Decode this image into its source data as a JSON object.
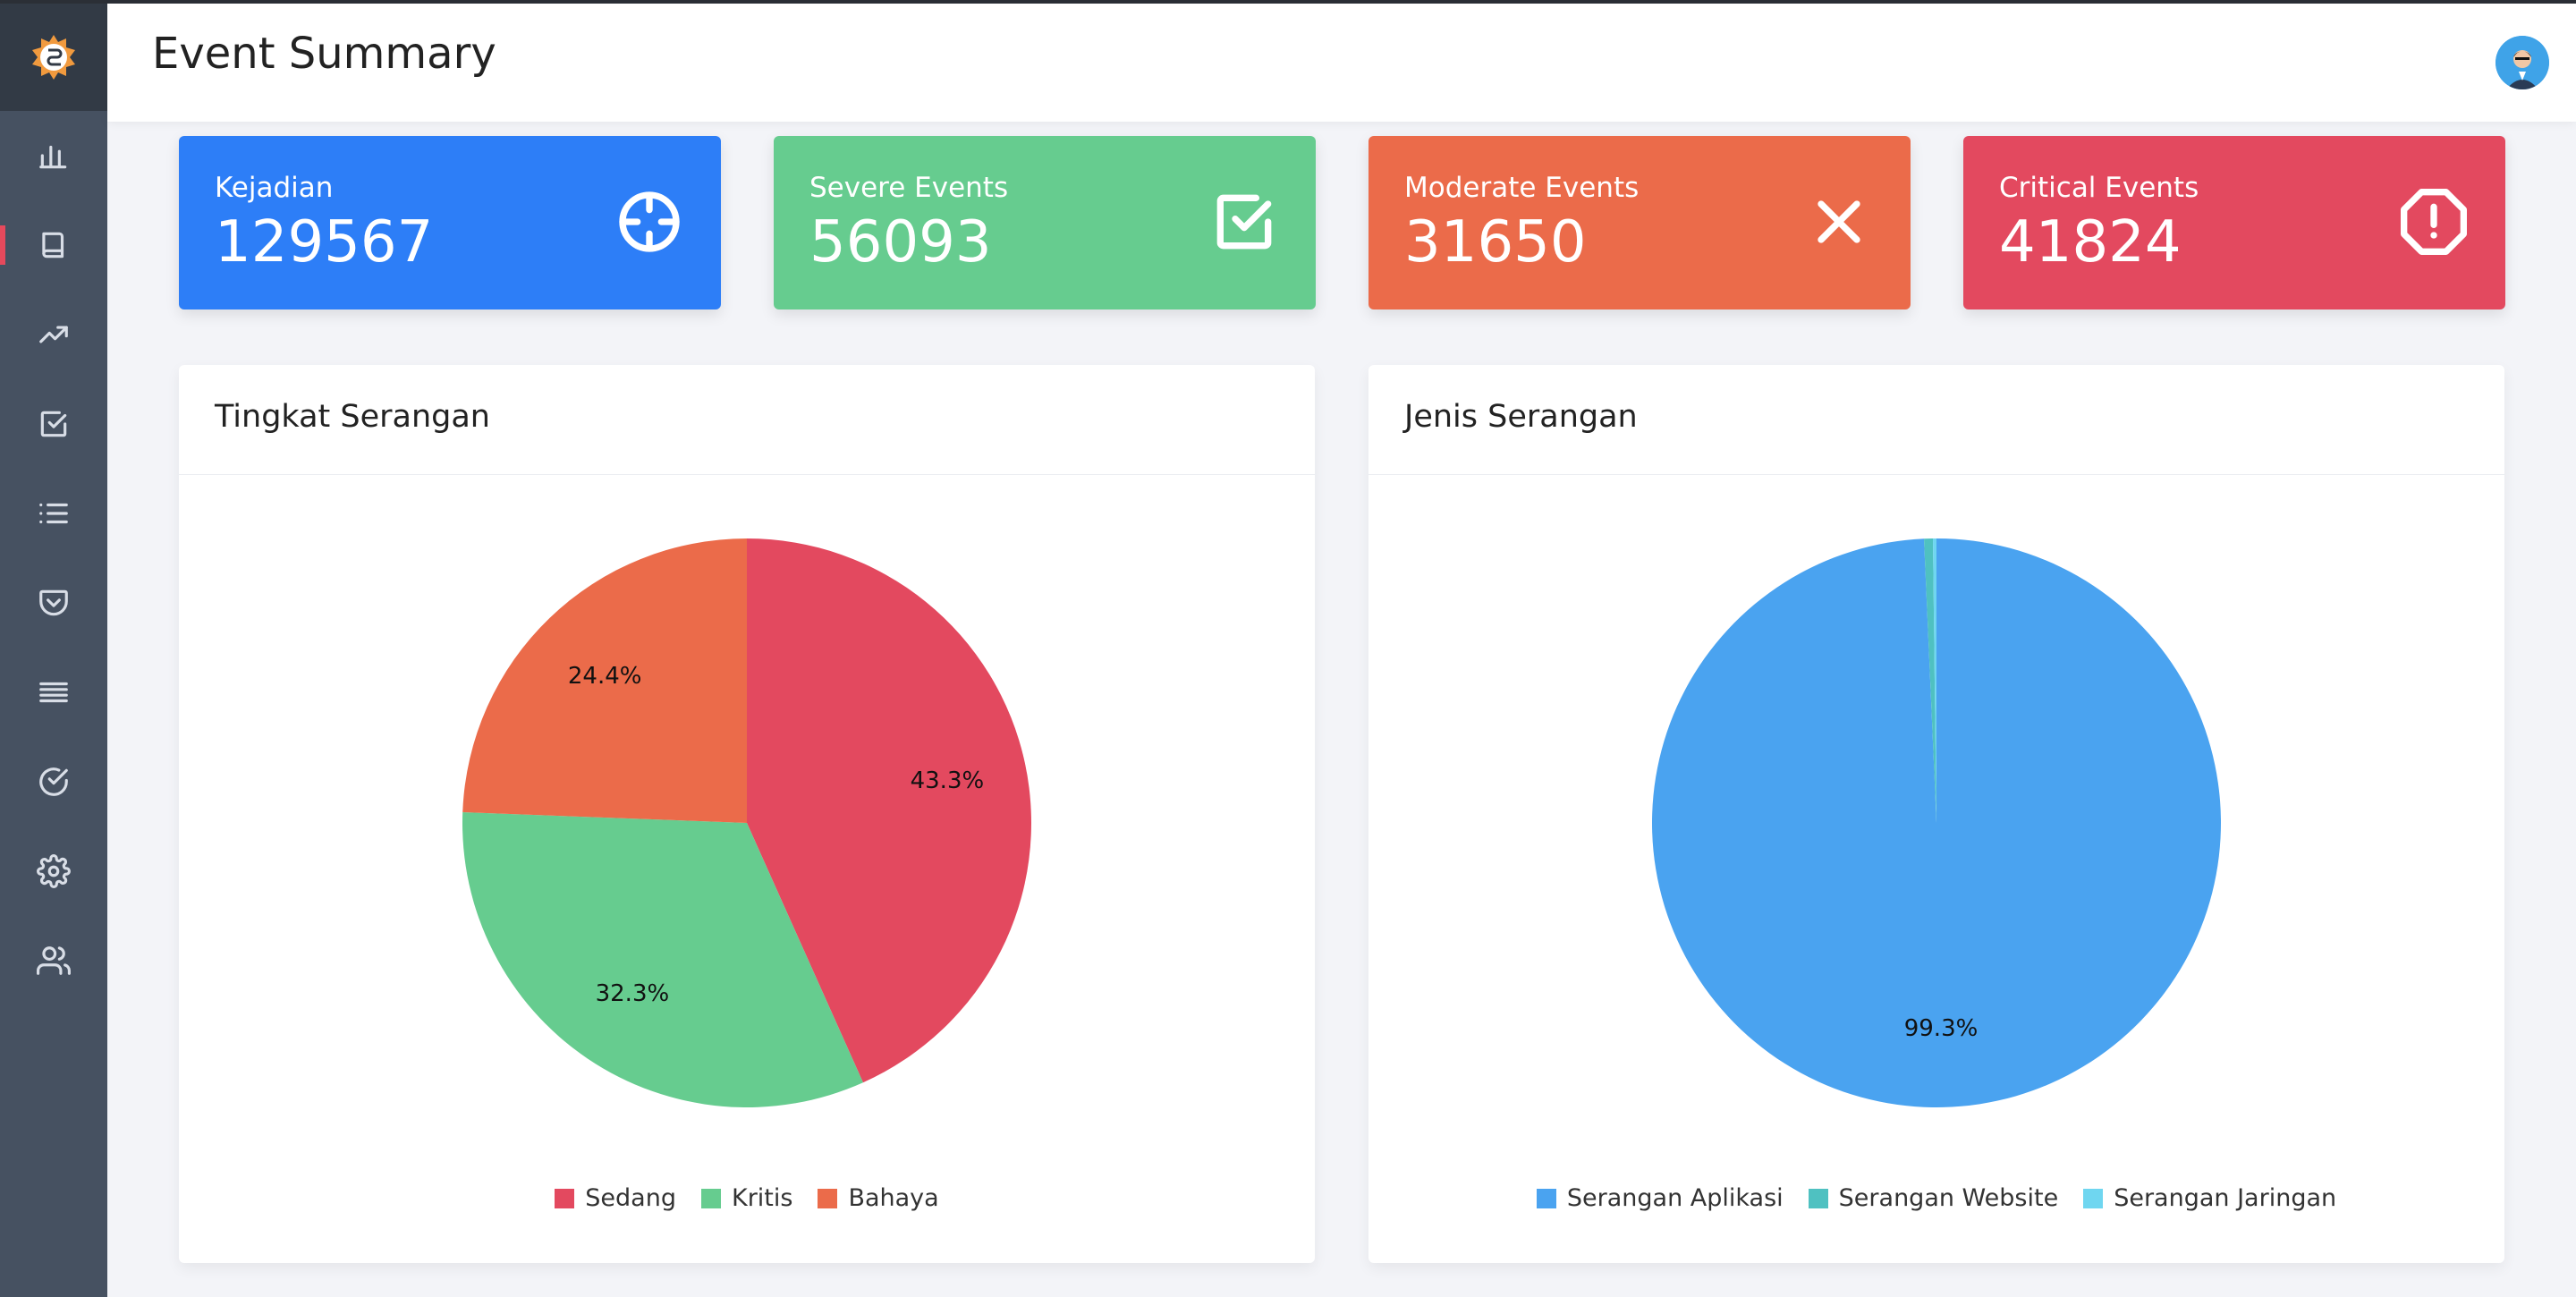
{
  "header": {
    "title": "Event Summary"
  },
  "sidebar": {
    "items": [
      {
        "icon": "bar-chart-icon"
      },
      {
        "icon": "book-icon",
        "active": true
      },
      {
        "icon": "trending-up-icon"
      },
      {
        "icon": "check-square-icon"
      },
      {
        "icon": "list-icon"
      },
      {
        "icon": "pocket-icon"
      },
      {
        "icon": "align-justify-icon"
      },
      {
        "icon": "check-circle-icon"
      },
      {
        "icon": "settings-icon"
      },
      {
        "icon": "users-icon"
      }
    ]
  },
  "stats": [
    {
      "label": "Kejadian",
      "value": "129567",
      "color": "#2d7ef7",
      "icon": "crosshair-icon"
    },
    {
      "label": "Severe Events",
      "value": "56093",
      "color": "#66cc8f",
      "icon": "check-square-icon"
    },
    {
      "label": "Moderate Events",
      "value": "31650",
      "color": "#eb6b4a",
      "icon": "x-icon"
    },
    {
      "label": "Critical Events",
      "value": "41824",
      "color": "#e3495f",
      "icon": "alert-octagon-icon"
    }
  ],
  "chart_data": [
    {
      "type": "pie",
      "title": "Tingkat Serangan",
      "categories": [
        "Sedang",
        "Kritis",
        "Bahaya"
      ],
      "values": [
        43.3,
        32.3,
        24.4
      ],
      "labels": [
        "43.3%",
        "32.3%",
        "24.4%"
      ],
      "colors": [
        "#e3495f",
        "#66cc8f",
        "#eb6b4a"
      ],
      "legend": "bottom"
    },
    {
      "type": "pie",
      "title": "Jenis Serangan",
      "categories": [
        "Serangan Aplikasi",
        "Serangan Website",
        "Serangan Jaringan"
      ],
      "values": [
        99.3,
        0.5,
        0.2
      ],
      "labels": [
        "99.3%",
        "",
        ""
      ],
      "colors": [
        "#4aa3f0",
        "#4fc1c1",
        "#6fd6f0"
      ],
      "legend": "bottom"
    }
  ]
}
